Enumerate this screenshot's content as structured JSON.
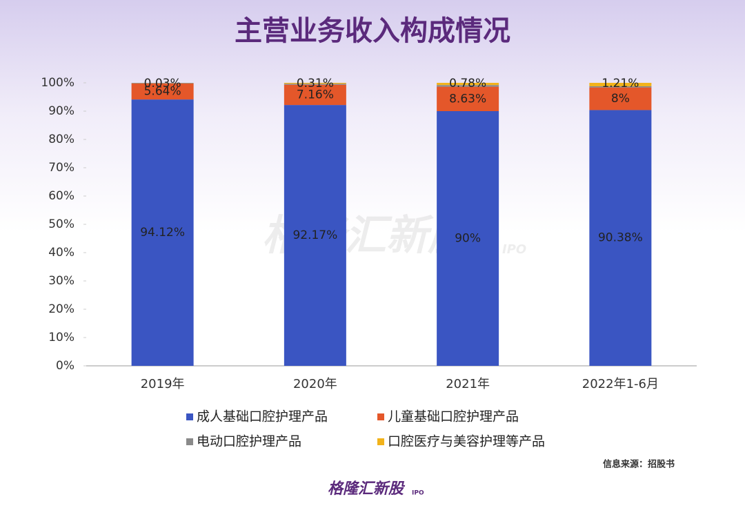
{
  "chart_data": {
    "type": "stacked_bar",
    "title": "主营业务收入构成情况",
    "categories": [
      "2019年",
      "2020年",
      "2021年",
      "2022年1-6月"
    ],
    "series": [
      {
        "name": "成人基础口腔护理产品",
        "color": "#3a55c2",
        "values": [
          94.12,
          92.17,
          90,
          90.38
        ],
        "value_labels": [
          "94.12%",
          "92.17%",
          "90%",
          "90.38%"
        ]
      },
      {
        "name": "儿童基础口腔护理产品",
        "color": "#e4572a",
        "values": [
          5.64,
          7.16,
          8.63,
          8
        ],
        "value_labels": [
          "5.64%",
          "7.16%",
          "8.63%",
          "8%"
        ]
      },
      {
        "name": "电动口腔护理产品",
        "color": "#8a8a8a",
        "values": [
          0.21,
          0.36,
          0.59,
          0.41
        ]
      },
      {
        "name": "口腔医疗与美容护理等产品",
        "color": "#f2b31b",
        "values": [
          0.03,
          0.31,
          0.78,
          1.21
        ],
        "value_labels": [
          "0.03%",
          "0.31%",
          "0.78%",
          "1.21%"
        ]
      }
    ],
    "ylim": [
      0,
      100
    ],
    "yticks": [
      {
        "value": 0,
        "label": "0%"
      },
      {
        "value": 10,
        "label": "10%"
      },
      {
        "value": 20,
        "label": "20%"
      },
      {
        "value": 30,
        "label": "30%"
      },
      {
        "value": 40,
        "label": "40%"
      },
      {
        "value": 50,
        "label": "50%"
      },
      {
        "value": 60,
        "label": "60%"
      },
      {
        "value": 70,
        "label": "70%"
      },
      {
        "value": 80,
        "label": "80%"
      },
      {
        "value": 90,
        "label": "90%"
      },
      {
        "value": 100,
        "label": "100%"
      }
    ],
    "source": "信息来源：招股书"
  },
  "watermark": {
    "brand": "格隆汇新股",
    "tag": "IPO"
  },
  "footer": {
    "brand": "格隆汇新股",
    "tag": "IPO"
  }
}
